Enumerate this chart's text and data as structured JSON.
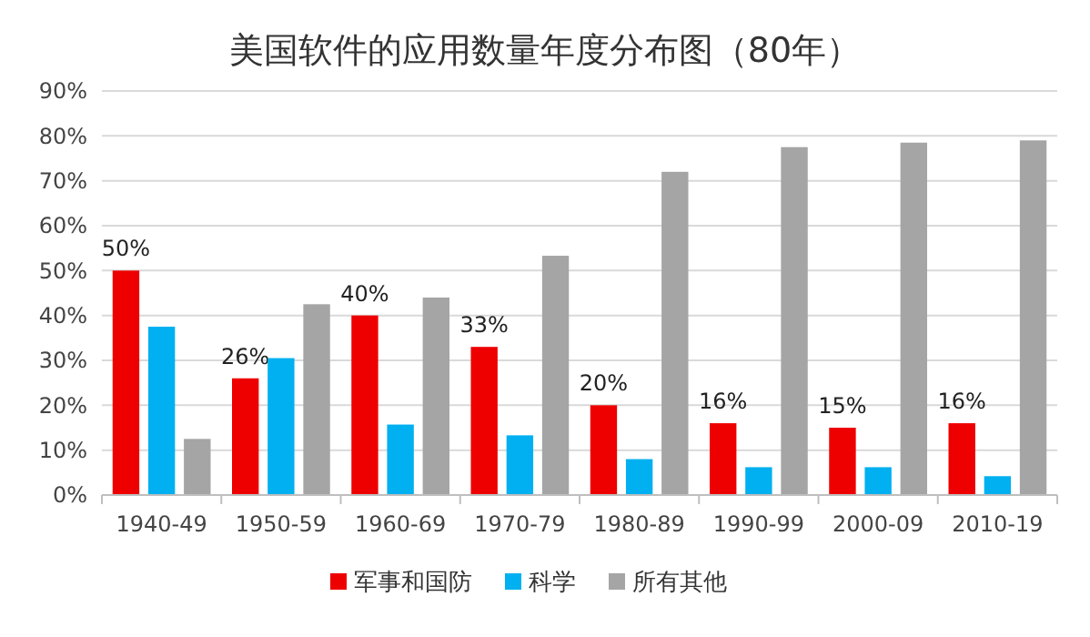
{
  "chart_data": {
    "type": "bar",
    "title": "美国软件的应用数量年度分布图（80年）",
    "categories": [
      "1940-49",
      "1950-59",
      "1960-69",
      "1970-79",
      "1980-89",
      "1990-99",
      "2000-09",
      "2010-19"
    ],
    "series": [
      {
        "name": "军事和国防",
        "color": "#ee0000",
        "values": [
          50,
          26,
          40,
          33,
          20,
          16,
          15,
          16
        ],
        "value_labels": [
          "50%",
          "26%",
          "40%",
          "33%",
          "20%",
          "16%",
          "15%",
          "16%"
        ]
      },
      {
        "name": "科学",
        "color": "#00b0f0",
        "values": [
          37.5,
          30.5,
          15.7,
          13.3,
          8,
          6.2,
          6.2,
          4.2
        ]
      },
      {
        "name": "所有其他",
        "color": "#a5a5a5",
        "values": [
          12.5,
          42.5,
          44,
          53.3,
          72,
          77.5,
          78.5,
          79
        ]
      }
    ],
    "ylim": [
      0,
      90
    ],
    "yticks": [
      {
        "value": 0,
        "label": "0%"
      },
      {
        "value": 10,
        "label": "10%"
      },
      {
        "value": 20,
        "label": "20%"
      },
      {
        "value": 30,
        "label": "30%"
      },
      {
        "value": 40,
        "label": "40%"
      },
      {
        "value": 50,
        "label": "50%"
      },
      {
        "value": 60,
        "label": "60%"
      },
      {
        "value": 70,
        "label": "70%"
      },
      {
        "value": 80,
        "label": "80%"
      },
      {
        "value": 90,
        "label": "90%"
      }
    ],
    "grid": "y",
    "legend": "bottom"
  }
}
